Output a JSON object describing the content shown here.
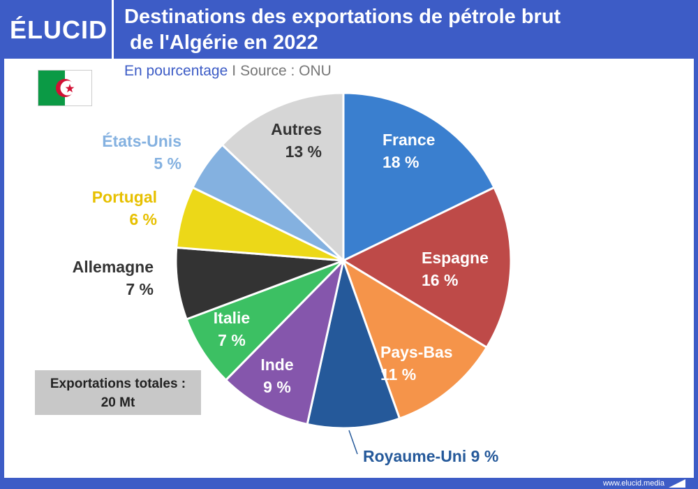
{
  "header": {
    "logo": "ÉLUCID",
    "title": "Destinations des exportations de pétrole brut\n de l'Algérie en 2022"
  },
  "subtitle": {
    "unit": "En pourcentage",
    "separator": "I",
    "source": "Source : ONU"
  },
  "flag": {
    "name": "algeria-flag",
    "colors": {
      "green": "#0b9a45",
      "white": "#ffffff",
      "red": "#d21034"
    }
  },
  "total_box": {
    "line1": "Exportations totales :",
    "line2": "20 Mt"
  },
  "footer": {
    "url": "www.elucid.media"
  },
  "chart_data": {
    "type": "pie",
    "title": "Destinations des exportations de pétrole brut de l'Algérie en 2022",
    "unit": "%",
    "start": "12 o'clock",
    "direction": "clockwise",
    "slices": [
      {
        "label": "France",
        "value": 18,
        "display": "18 %",
        "color": "#3a7fcf"
      },
      {
        "label": "Espagne",
        "value": 16,
        "display": "16 %",
        "color": "#be4a48"
      },
      {
        "label": "Pays-Bas",
        "value": 11,
        "display": "11 %",
        "color": "#f5944a"
      },
      {
        "label": "Royaume-Uni",
        "value": 9,
        "display": "9 %",
        "color": "#25599a"
      },
      {
        "label": "Inde",
        "value": 9,
        "display": "9 %",
        "color": "#8556ac"
      },
      {
        "label": "Italie",
        "value": 7,
        "display": "7 %",
        "color": "#3cc063"
      },
      {
        "label": "Allemagne",
        "value": 7,
        "display": "7 %",
        "color": "#333333"
      },
      {
        "label": "Portugal",
        "value": 6,
        "display": "6 %",
        "color": "#ecd818"
      },
      {
        "label": "États-Unis",
        "value": 5,
        "display": "5 %",
        "color": "#84b1e0"
      },
      {
        "label": "Autres",
        "value": 13,
        "display": "13 %",
        "color": "#d6d6d6"
      }
    ],
    "label_colors": {
      "inside": "#ffffff",
      "Autres": "#333333",
      "Allemagne": "#333333",
      "Portugal": "#e7c000",
      "États-Unis": "#84b1e0",
      "Royaume-Uni": "#25599a"
    }
  }
}
